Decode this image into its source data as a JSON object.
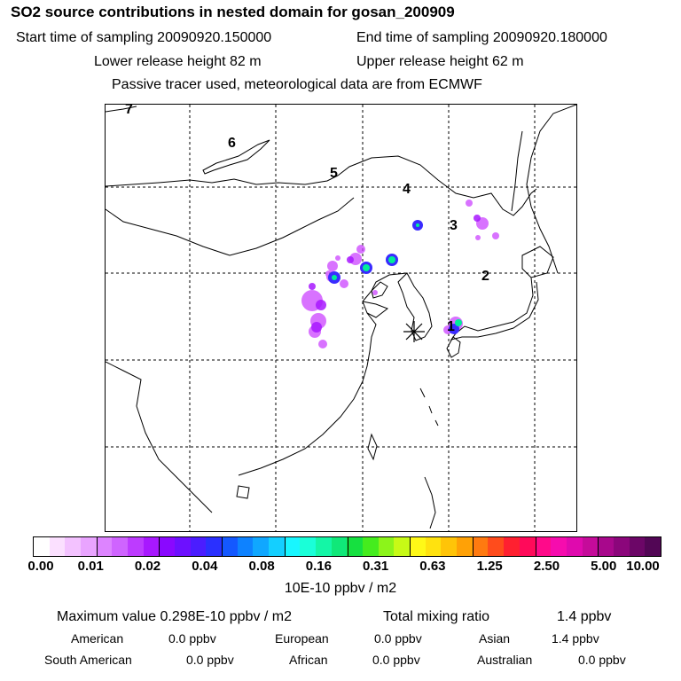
{
  "header": {
    "title": "SO2 source contributions in nested domain for gosan_200909",
    "start_label": "Start time of sampling 20090920.150000",
    "end_label": "End time of sampling 20090920.180000",
    "lower_release": "Lower release height   82 m",
    "upper_release": "Upper release height   62 m",
    "tracer_info": "Passive tracer used, meteorological data are from ECMWF"
  },
  "map": {
    "day_labels": [
      "1",
      "2",
      "3",
      "4",
      "5",
      "6",
      "7"
    ],
    "receptor_marker": "asterisk",
    "colors": {
      "coast": "#000000",
      "grid": "#000000",
      "plume_low": "#cc44ff",
      "plume_mid": "#3a2bff",
      "plume_high": "#00ee99"
    }
  },
  "colorbar": {
    "colors": [
      "#ffffff",
      "#fbe0ff",
      "#f3c2ff",
      "#e9a4ff",
      "#dd84ff",
      "#cf64ff",
      "#bd3bff",
      "#a818ff",
      "#8a08ff",
      "#6d10ff",
      "#4b1dff",
      "#2a30ff",
      "#1458ff",
      "#0e82ff",
      "#10a7ff",
      "#14cfff",
      "#18f6ff",
      "#1affd8",
      "#14f6a6",
      "#10e879",
      "#16e040",
      "#45ec1e",
      "#8cf41a",
      "#c7fa16",
      "#fff917",
      "#ffe20f",
      "#ffc408",
      "#ffa106",
      "#ff7a10",
      "#ff4c1c",
      "#ff2030",
      "#ff0a5a",
      "#ff0a8a",
      "#f60cae",
      "#df0aae",
      "#c50b9a",
      "#a8088c",
      "#8b067b",
      "#6c0667",
      "#520655"
    ],
    "ticks": [
      "0.00",
      "0.01",
      "0.02",
      "0.04",
      "0.08",
      "0.16",
      "0.31",
      "0.63",
      "1.25",
      "2.50",
      "5.00",
      "10.00"
    ],
    "unit": "10E-10 ppbv / m2"
  },
  "stats": {
    "max_label": "Maximum value  0.298E-10 ppbv / m2",
    "total_label": "Total mixing ratio",
    "total_value": "1.4 ppbv",
    "regions": [
      {
        "name": "American",
        "value": "0.0 ppbv"
      },
      {
        "name": "European",
        "value": "0.0 ppbv"
      },
      {
        "name": "Asian",
        "value": "1.4 ppbv"
      },
      {
        "name": "South American",
        "value": "0.0 ppbv"
      },
      {
        "name": "African",
        "value": "0.0 ppbv"
      },
      {
        "name": "Australian",
        "value": "0.0 ppbv"
      }
    ]
  }
}
